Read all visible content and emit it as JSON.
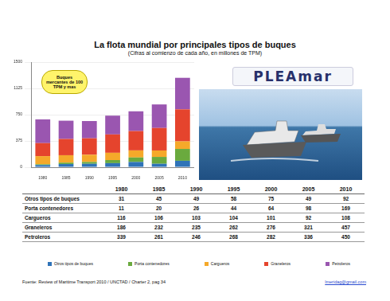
{
  "chart_data": {
    "type": "bar",
    "stacked": true,
    "title": "La flota mundial por principales tipos de buques",
    "subtitle": "(Cifras al comienzo de cada año, en millones de TPM)",
    "annotations": [
      "Buques mercantes de 100 TPM y mas"
    ],
    "categories": [
      "1980",
      "1985",
      "1990",
      "1995",
      "2000",
      "2005",
      "2010"
    ],
    "series": [
      {
        "name": "Otros tipos de buques",
        "color": "#2f73b8",
        "values": [
          31,
          45,
          49,
          58,
          75,
          49,
          92
        ]
      },
      {
        "name": "Porta contenedores",
        "color": "#6aaa3e",
        "values": [
          11,
          20,
          26,
          44,
          64,
          98,
          169
        ]
      },
      {
        "name": "Cargueros",
        "color": "#f5a92a",
        "values": [
          116,
          106,
          103,
          104,
          101,
          92,
          108
        ]
      },
      {
        "name": "Graneleros",
        "color": "#e5442d",
        "values": [
          186,
          232,
          235,
          262,
          276,
          321,
          457
        ]
      },
      {
        "name": "Petroleros",
        "color": "#9a56b0",
        "values": [
          339,
          261,
          246,
          268,
          282,
          336,
          450
        ]
      }
    ],
    "ylim": [
      0,
      1500
    ],
    "yticks": [
      0,
      375,
      750,
      1125,
      1500
    ],
    "grid": true
  },
  "logo": "PLEAmar",
  "source": "Fuente: Review of Maritime Transport 2010 / UNCTAD / Charter 2, pag 34",
  "email": "lmeridag@gmail.com"
}
